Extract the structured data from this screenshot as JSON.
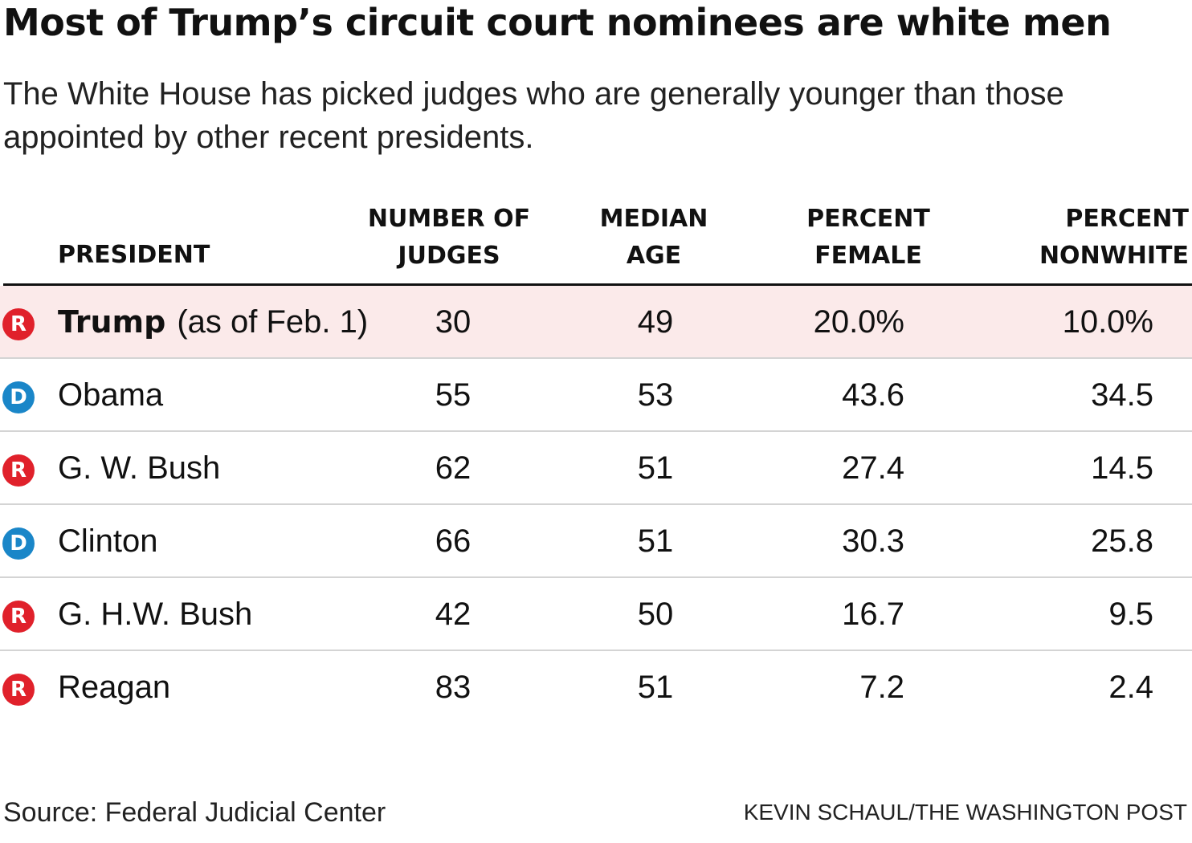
{
  "title": "Most of Trump’s circuit court nominees are white men",
  "subtitle": "The White House has picked judges who are generally younger than those appointed by other recent presidents.",
  "colors": {
    "republican": "#e0212b",
    "democrat": "#1a86c8",
    "highlight_row": "#fbeaea"
  },
  "headers": {
    "president": "PRESIDENT",
    "judges": [
      "NUMBER OF",
      "JUDGES"
    ],
    "age": [
      "MEDIAN",
      "AGE"
    ],
    "female": [
      "PERCENT",
      "FEMALE"
    ],
    "nonwhite": [
      "PERCENT",
      "NONWHITE"
    ]
  },
  "chart_data": {
    "type": "table",
    "title": "Most of Trump’s circuit court nominees are white men",
    "columns": [
      "PRESIDENT",
      "NUMBER OF JUDGES",
      "MEDIAN AGE",
      "PERCENT FEMALE",
      "PERCENT NONWHITE"
    ],
    "rows": [
      {
        "party": "R",
        "president": "Trump",
        "note": "(as of Feb. 1)",
        "judges": "30",
        "median_age": "49",
        "pct_female": "20.0%",
        "pct_nonwhite": "10.0%",
        "highlight": true
      },
      {
        "party": "D",
        "president": "Obama",
        "note": "",
        "judges": "55",
        "median_age": "53",
        "pct_female": "43.6",
        "pct_nonwhite": "34.5",
        "highlight": false
      },
      {
        "party": "R",
        "president": "G. W. Bush",
        "note": "",
        "judges": "62",
        "median_age": "51",
        "pct_female": "27.4",
        "pct_nonwhite": "14.5",
        "highlight": false
      },
      {
        "party": "D",
        "president": "Clinton",
        "note": "",
        "judges": "66",
        "median_age": "51",
        "pct_female": "30.3",
        "pct_nonwhite": "25.8",
        "highlight": false
      },
      {
        "party": "R",
        "president": "G. H.W. Bush",
        "note": "",
        "judges": "42",
        "median_age": "50",
        "pct_female": "16.7",
        "pct_nonwhite": "9.5",
        "highlight": false
      },
      {
        "party": "R",
        "president": "Reagan",
        "note": "",
        "judges": "83",
        "median_age": "51",
        "pct_female": "7.2",
        "pct_nonwhite": "2.4",
        "highlight": false
      }
    ]
  },
  "footer": {
    "source": "Source: Federal Judicial Center",
    "credit": "KEVIN SCHAUL/THE WASHINGTON POST"
  }
}
